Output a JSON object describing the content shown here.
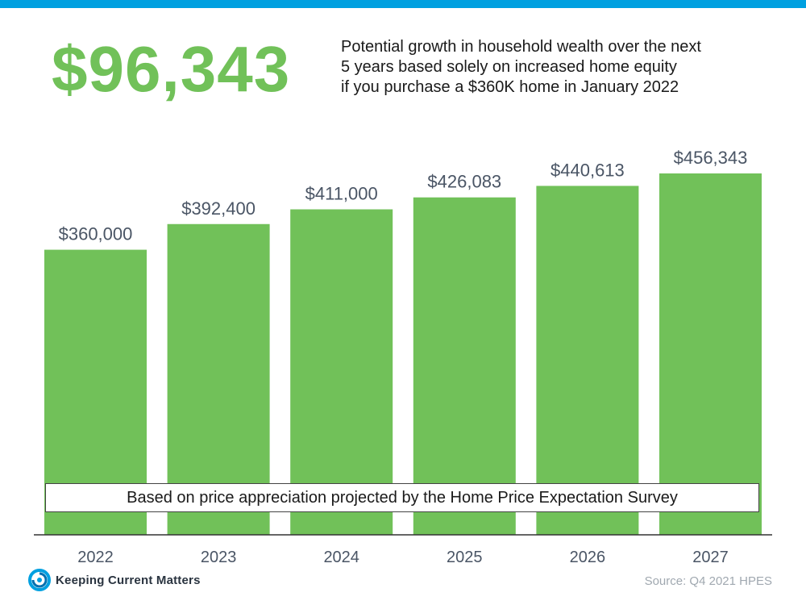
{
  "headline": "$96,343",
  "subtitle_lines": [
    "Potential growth in household wealth over the next",
    "5 years based solely on increased home equity",
    "if you purchase a $360K home in January 2022"
  ],
  "note": "Based on price appreciation projected by the Home Price Expectation Survey",
  "logo_text": "Keeping Current Matters",
  "logo_icon": "kcm-swirl-icon",
  "source": "Source: Q4 2021 HPES",
  "colors": {
    "bar": "#71c159",
    "headline": "#71c159",
    "top_bar": "#00a0e0",
    "labels": "#4a5565"
  },
  "chart_data": {
    "type": "bar",
    "categories": [
      "2022",
      "2023",
      "2024",
      "2025",
      "2026",
      "2027"
    ],
    "values": [
      360000,
      392400,
      411000,
      426083,
      440613,
      456343
    ],
    "value_labels": [
      "$360,000",
      "$392,400",
      "$411,000",
      "$426,083",
      "$440,613",
      "$456,343"
    ],
    "title": "",
    "xlabel": "",
    "ylabel": "",
    "grid": false,
    "y_axis_visible": false
  }
}
